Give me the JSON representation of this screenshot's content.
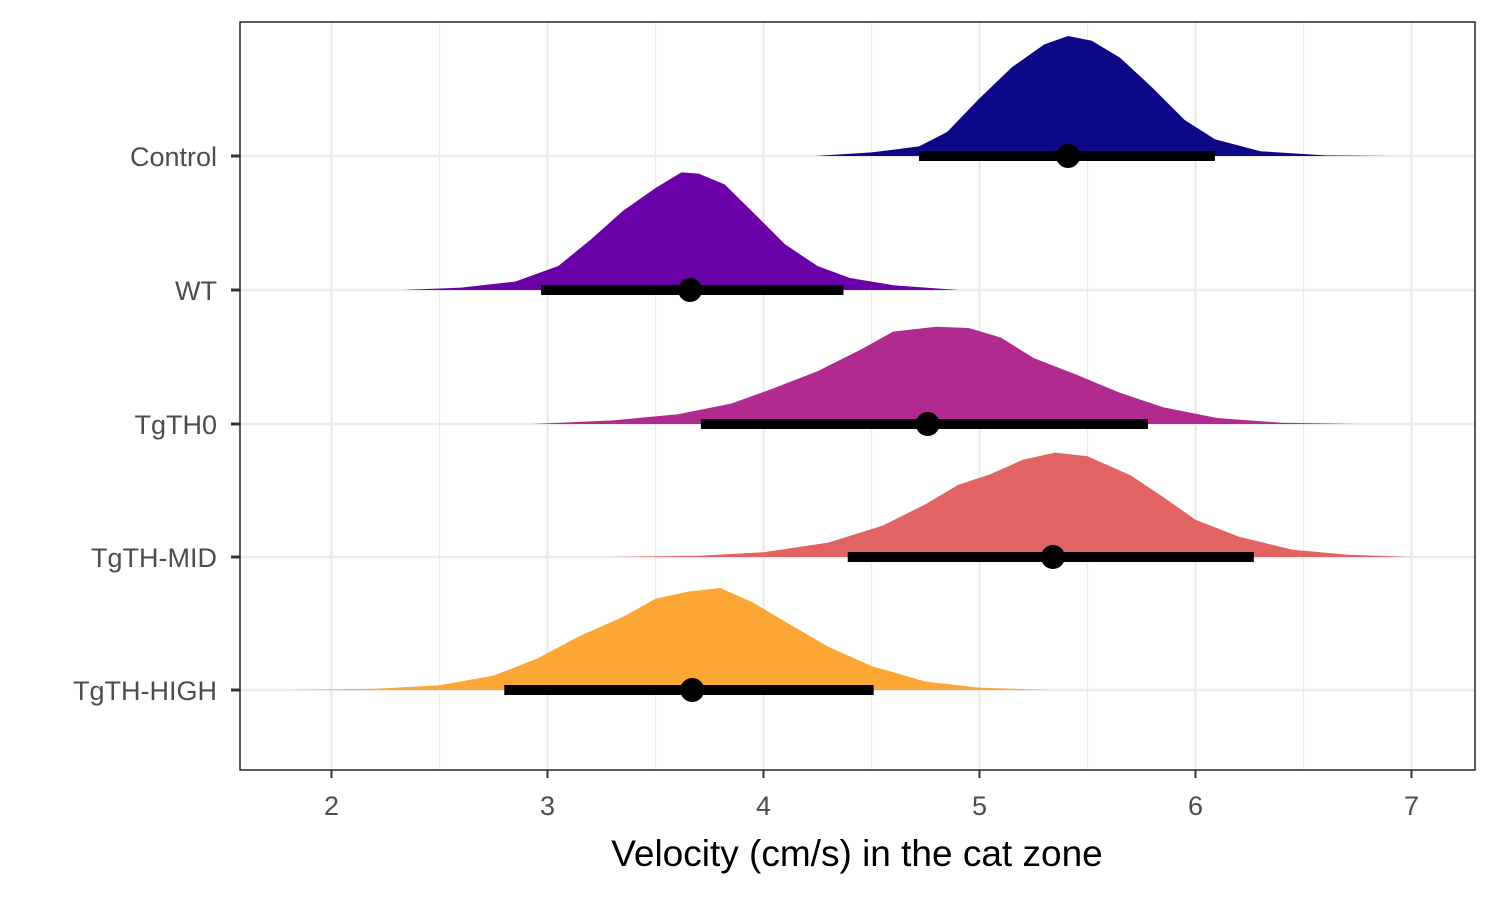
{
  "chart_data": {
    "type": "halfeye",
    "title": "",
    "xlabel": "Velocity (cm/s) in the cat zone",
    "ylabel": "",
    "xlim": [
      1.57,
      7.29
    ],
    "x_ticks": [
      2,
      3,
      4,
      5,
      6,
      7
    ],
    "x_tick_labels": [
      "2",
      "3",
      "4",
      "5",
      "6",
      "7"
    ],
    "x_minor_ticks": [
      2.5,
      3.5,
      4.5,
      5.5,
      6.5
    ],
    "grid": true,
    "legend": "none",
    "categories": [
      "Control",
      "WT",
      "TgTH0",
      "TgTH-MID",
      "TgTH-HIGH"
    ],
    "series": [
      {
        "category": "Control",
        "color": "#0d0887",
        "point": 5.41,
        "interval": [
          4.72,
          6.09
        ],
        "density_range": [
          4.24,
          6.9
        ],
        "density": [
          [
            4.24,
            0.0
          ],
          [
            4.5,
            0.03
          ],
          [
            4.72,
            0.08
          ],
          [
            4.85,
            0.2
          ],
          [
            5.0,
            0.48
          ],
          [
            5.15,
            0.74
          ],
          [
            5.3,
            0.93
          ],
          [
            5.41,
            1.0
          ],
          [
            5.52,
            0.96
          ],
          [
            5.65,
            0.82
          ],
          [
            5.8,
            0.57
          ],
          [
            5.95,
            0.3
          ],
          [
            6.09,
            0.14
          ],
          [
            6.3,
            0.04
          ],
          [
            6.6,
            0.005
          ],
          [
            6.9,
            0.0
          ]
        ]
      },
      {
        "category": "WT",
        "color": "#6a00a8",
        "point": 3.66,
        "interval": [
          2.97,
          4.37
        ],
        "density_range": [
          2.33,
          4.9
        ],
        "density": [
          [
            2.33,
            0.0
          ],
          [
            2.6,
            0.02
          ],
          [
            2.85,
            0.07
          ],
          [
            3.05,
            0.2
          ],
          [
            3.2,
            0.42
          ],
          [
            3.35,
            0.66
          ],
          [
            3.5,
            0.85
          ],
          [
            3.62,
            0.98
          ],
          [
            3.7,
            0.97
          ],
          [
            3.82,
            0.88
          ],
          [
            3.95,
            0.65
          ],
          [
            4.1,
            0.38
          ],
          [
            4.25,
            0.2
          ],
          [
            4.4,
            0.1
          ],
          [
            4.6,
            0.04
          ],
          [
            4.9,
            0.0
          ]
        ]
      },
      {
        "category": "TgTH0",
        "color": "#b12a90",
        "point": 4.76,
        "interval": [
          3.71,
          5.78
        ],
        "density_range": [
          2.93,
          6.75
        ],
        "density": [
          [
            2.93,
            0.0
          ],
          [
            3.3,
            0.03
          ],
          [
            3.6,
            0.08
          ],
          [
            3.85,
            0.17
          ],
          [
            4.05,
            0.3
          ],
          [
            4.25,
            0.44
          ],
          [
            4.45,
            0.62
          ],
          [
            4.6,
            0.77
          ],
          [
            4.8,
            0.81
          ],
          [
            4.95,
            0.8
          ],
          [
            5.1,
            0.72
          ],
          [
            5.25,
            0.55
          ],
          [
            5.45,
            0.41
          ],
          [
            5.65,
            0.26
          ],
          [
            5.85,
            0.14
          ],
          [
            6.1,
            0.05
          ],
          [
            6.4,
            0.01
          ],
          [
            6.75,
            0.0
          ]
        ]
      },
      {
        "category": "TgTH-MID",
        "color": "#e16462",
        "point": 5.34,
        "interval": [
          4.39,
          6.27
        ],
        "density_range": [
          3.3,
          7.0
        ],
        "density": [
          [
            3.3,
            0.0
          ],
          [
            3.7,
            0.01
          ],
          [
            4.0,
            0.04
          ],
          [
            4.3,
            0.12
          ],
          [
            4.55,
            0.26
          ],
          [
            4.75,
            0.44
          ],
          [
            4.9,
            0.6
          ],
          [
            5.05,
            0.69
          ],
          [
            5.2,
            0.81
          ],
          [
            5.35,
            0.87
          ],
          [
            5.5,
            0.84
          ],
          [
            5.7,
            0.68
          ],
          [
            5.85,
            0.5
          ],
          [
            6.0,
            0.31
          ],
          [
            6.2,
            0.17
          ],
          [
            6.45,
            0.06
          ],
          [
            6.7,
            0.02
          ],
          [
            7.0,
            0.0
          ]
        ]
      },
      {
        "category": "TgTH-HIGH",
        "color": "#fca636",
        "point": 3.67,
        "interval": [
          2.8,
          4.51
        ],
        "density_range": [
          1.8,
          5.33
        ],
        "density": [
          [
            1.8,
            0.0
          ],
          [
            2.2,
            0.01
          ],
          [
            2.5,
            0.04
          ],
          [
            2.75,
            0.12
          ],
          [
            2.95,
            0.26
          ],
          [
            3.15,
            0.45
          ],
          [
            3.35,
            0.61
          ],
          [
            3.5,
            0.76
          ],
          [
            3.65,
            0.82
          ],
          [
            3.8,
            0.85
          ],
          [
            3.95,
            0.73
          ],
          [
            4.1,
            0.57
          ],
          [
            4.3,
            0.36
          ],
          [
            4.5,
            0.2
          ],
          [
            4.75,
            0.07
          ],
          [
            5.0,
            0.02
          ],
          [
            5.33,
            0.0
          ]
        ]
      }
    ]
  }
}
